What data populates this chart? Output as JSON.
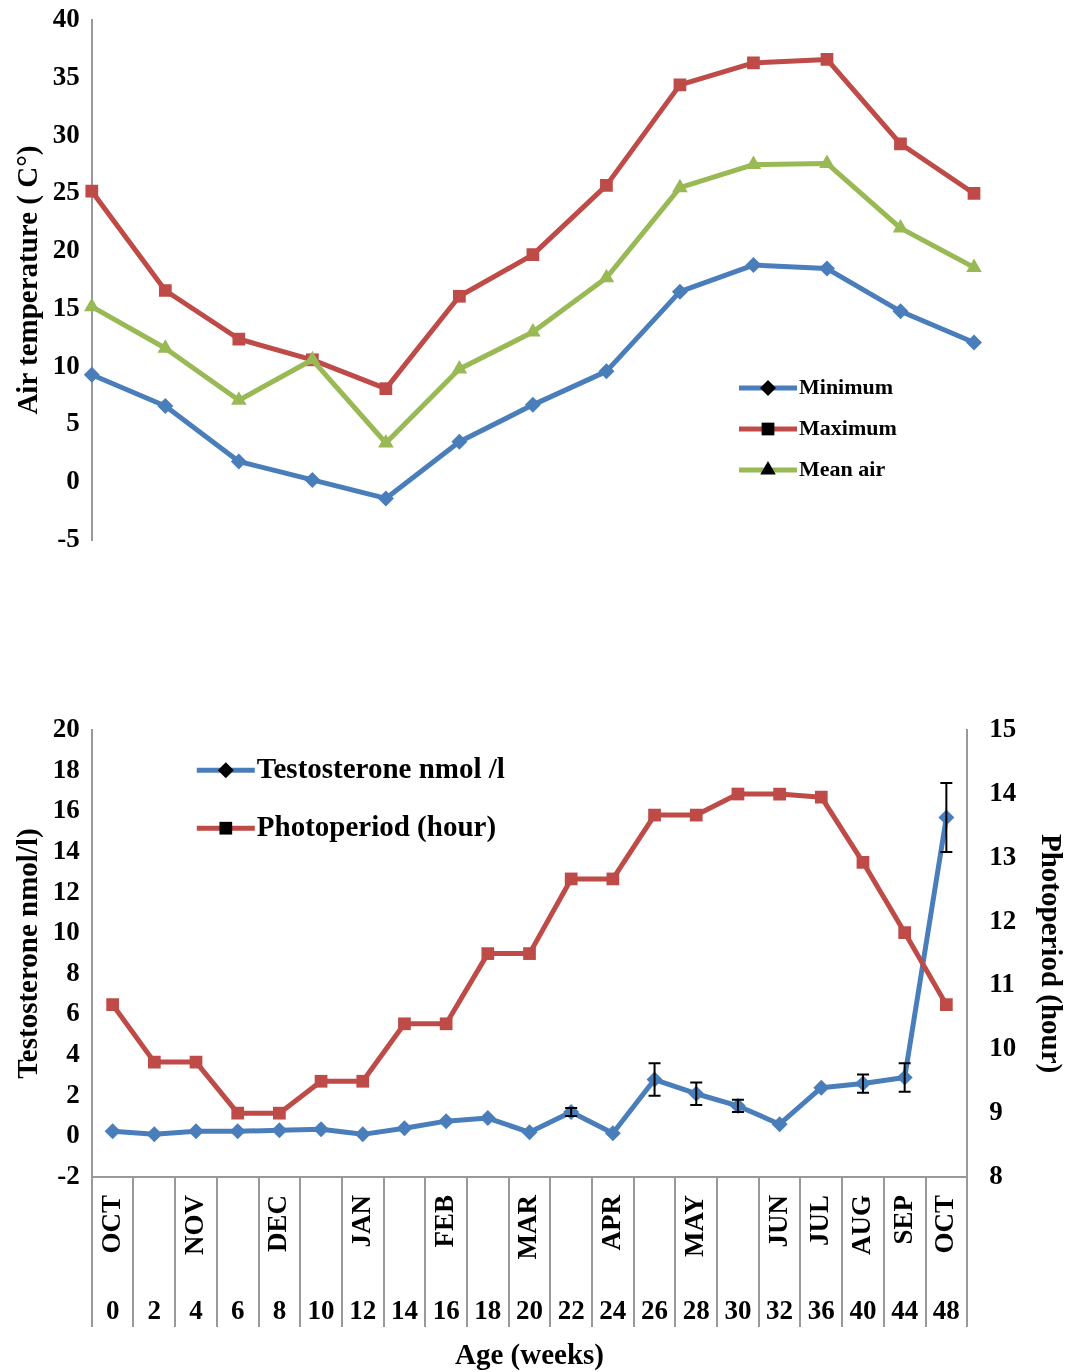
{
  "chart_data": [
    {
      "type": "line",
      "ylabel": "Air temperature ( C°)",
      "categories": [
        null,
        null,
        null,
        null,
        null,
        null,
        null,
        null,
        null,
        null,
        null,
        null,
        null
      ],
      "ylim": [
        -5,
        40
      ],
      "yticks": [
        -5,
        0,
        5,
        10,
        15,
        20,
        25,
        30,
        35,
        40
      ],
      "tick_labels": "y",
      "grid": false,
      "legend": "bottom right",
      "line_style": "solid",
      "series": [
        {
          "name": "Minimum",
          "color": "#4a7ebb",
          "marker": "diamond",
          "values": [
            9.3,
            6.6,
            1.8,
            0.2,
            -1.4,
            3.5,
            6.7,
            9.6,
            16.5,
            18.8,
            18.5,
            14.8,
            12.1
          ]
        },
        {
          "name": "Maximum",
          "color": "#be4b48",
          "marker": "square",
          "values": [
            25.2,
            16.6,
            12.4,
            10.6,
            8.1,
            16.1,
            19.7,
            25.7,
            34.4,
            36.3,
            36.6,
            29.3,
            25.0
          ]
        },
        {
          "name": "Mean air",
          "color": "#98b954",
          "marker": "triangle",
          "values": [
            15.2,
            11.6,
            7.1,
            10.6,
            3.4,
            9.8,
            13.0,
            17.7,
            25.5,
            27.5,
            27.6,
            22.0,
            18.6
          ]
        }
      ]
    },
    {
      "type": "line",
      "xlabel": "Age (weeks)",
      "ylabel": "Testosterone nmol/l)",
      "y2label": "Photoperiod (hour)",
      "categories": [
        "OCT\n0",
        "\n2",
        "NOV\n4",
        "\n6",
        "DEC\n8",
        "\n10",
        "JAN\n12",
        "\n14",
        "FEB\n16",
        "\n18",
        "MAR\n20",
        "\n22",
        "APR\n24",
        "\n26",
        "MAY\n28",
        "\n30",
        "JUN\n32",
        "JUL\n36",
        "AUG\n40",
        "SEP\n44",
        "OCT\n48"
      ],
      "ylim": [
        -2,
        20
      ],
      "yticks": [
        -2,
        0,
        2,
        4,
        6,
        8,
        10,
        12,
        14,
        16,
        18,
        20
      ],
      "y2lim": [
        8,
        15
      ],
      "y2ticks": [
        8,
        9,
        10,
        11,
        12,
        13,
        14,
        15
      ],
      "grid": false,
      "legend": "top left",
      "line_style": "solid",
      "series": [
        {
          "name": "Testosterone nmol /l",
          "color": "#4a7ebb",
          "marker": "diamond",
          "values": [
            0.25,
            0.1,
            0.25,
            0.25,
            0.3,
            0.35,
            0.1,
            0.4,
            0.75,
            0.9,
            0.2,
            1.2,
            0.15,
            2.8,
            2.1,
            1.5,
            0.6,
            2.4,
            2.6,
            2.9,
            15.7
          ],
          "errors": [
            null,
            null,
            null,
            null,
            null,
            null,
            null,
            null,
            null,
            null,
            null,
            0.2,
            null,
            0.8,
            0.55,
            0.3,
            null,
            null,
            0.45,
            0.7,
            1.7
          ]
        },
        {
          "name": "Photoperiod (hour)",
          "color": "#be4b48",
          "marker": "square",
          "axis": "y2",
          "values": [
            10.7,
            9.8,
            9.8,
            9.0,
            9.0,
            9.5,
            9.5,
            10.4,
            10.4,
            11.5,
            11.5,
            12.67,
            12.67,
            13.67,
            13.67,
            14.0,
            14.0,
            13.95,
            12.93,
            11.83,
            10.7
          ]
        }
      ]
    }
  ]
}
